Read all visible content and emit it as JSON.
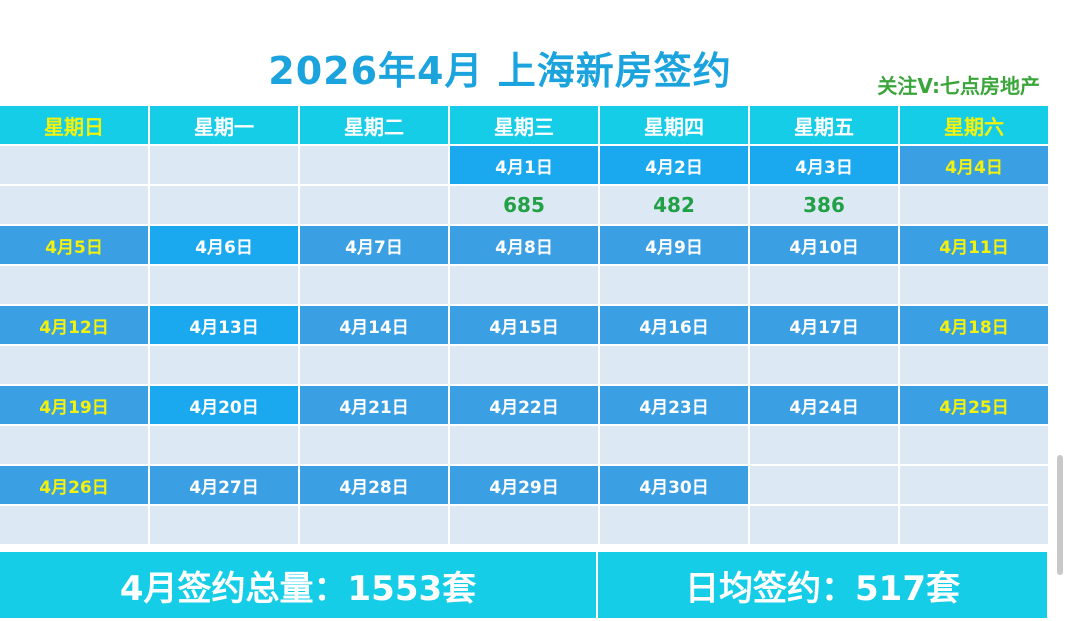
{
  "title": "2026年4月 上海新房签约",
  "subtitle": "关注V:七点房地产",
  "weekdays": [
    "星期日",
    "星期一",
    "星期二",
    "星期三",
    "星期四",
    "星期五",
    "星期六"
  ],
  "weeks": [
    {
      "dates": [
        "",
        "",
        "",
        "4月1日",
        "4月2日",
        "4月3日",
        "4月4日"
      ],
      "values": [
        "",
        "",
        "",
        "685",
        "482",
        "386",
        ""
      ]
    },
    {
      "dates": [
        "4月5日",
        "4月6日",
        "4月7日",
        "4月8日",
        "4月9日",
        "4月10日",
        "4月11日"
      ],
      "values": [
        "",
        "",
        "",
        "",
        "",
        "",
        ""
      ]
    },
    {
      "dates": [
        "4月12日",
        "4月13日",
        "4月14日",
        "4月15日",
        "4月16日",
        "4月17日",
        "4月18日"
      ],
      "values": [
        "",
        "",
        "",
        "",
        "",
        "",
        ""
      ]
    },
    {
      "dates": [
        "4月19日",
        "4月20日",
        "4月21日",
        "4月22日",
        "4月23日",
        "4月24日",
        "4月25日"
      ],
      "values": [
        "",
        "",
        "",
        "",
        "",
        "",
        ""
      ]
    },
    {
      "dates": [
        "4月26日",
        "4月27日",
        "4月28日",
        "4月29日",
        "4月30日",
        "",
        ""
      ],
      "values": [
        "",
        "",
        "",
        "",
        "",
        "",
        ""
      ]
    }
  ],
  "summary": {
    "total": "4月签约总量：1553套",
    "daily_avg": "日均签约：517套"
  },
  "colors": {
    "title": "#1ba3de",
    "header_bg": "#16cde8",
    "weekend_text": "#f2f20c",
    "value_text": "#21a046",
    "row_light": "#dce8f4",
    "subtitle": "#3aa53a"
  }
}
